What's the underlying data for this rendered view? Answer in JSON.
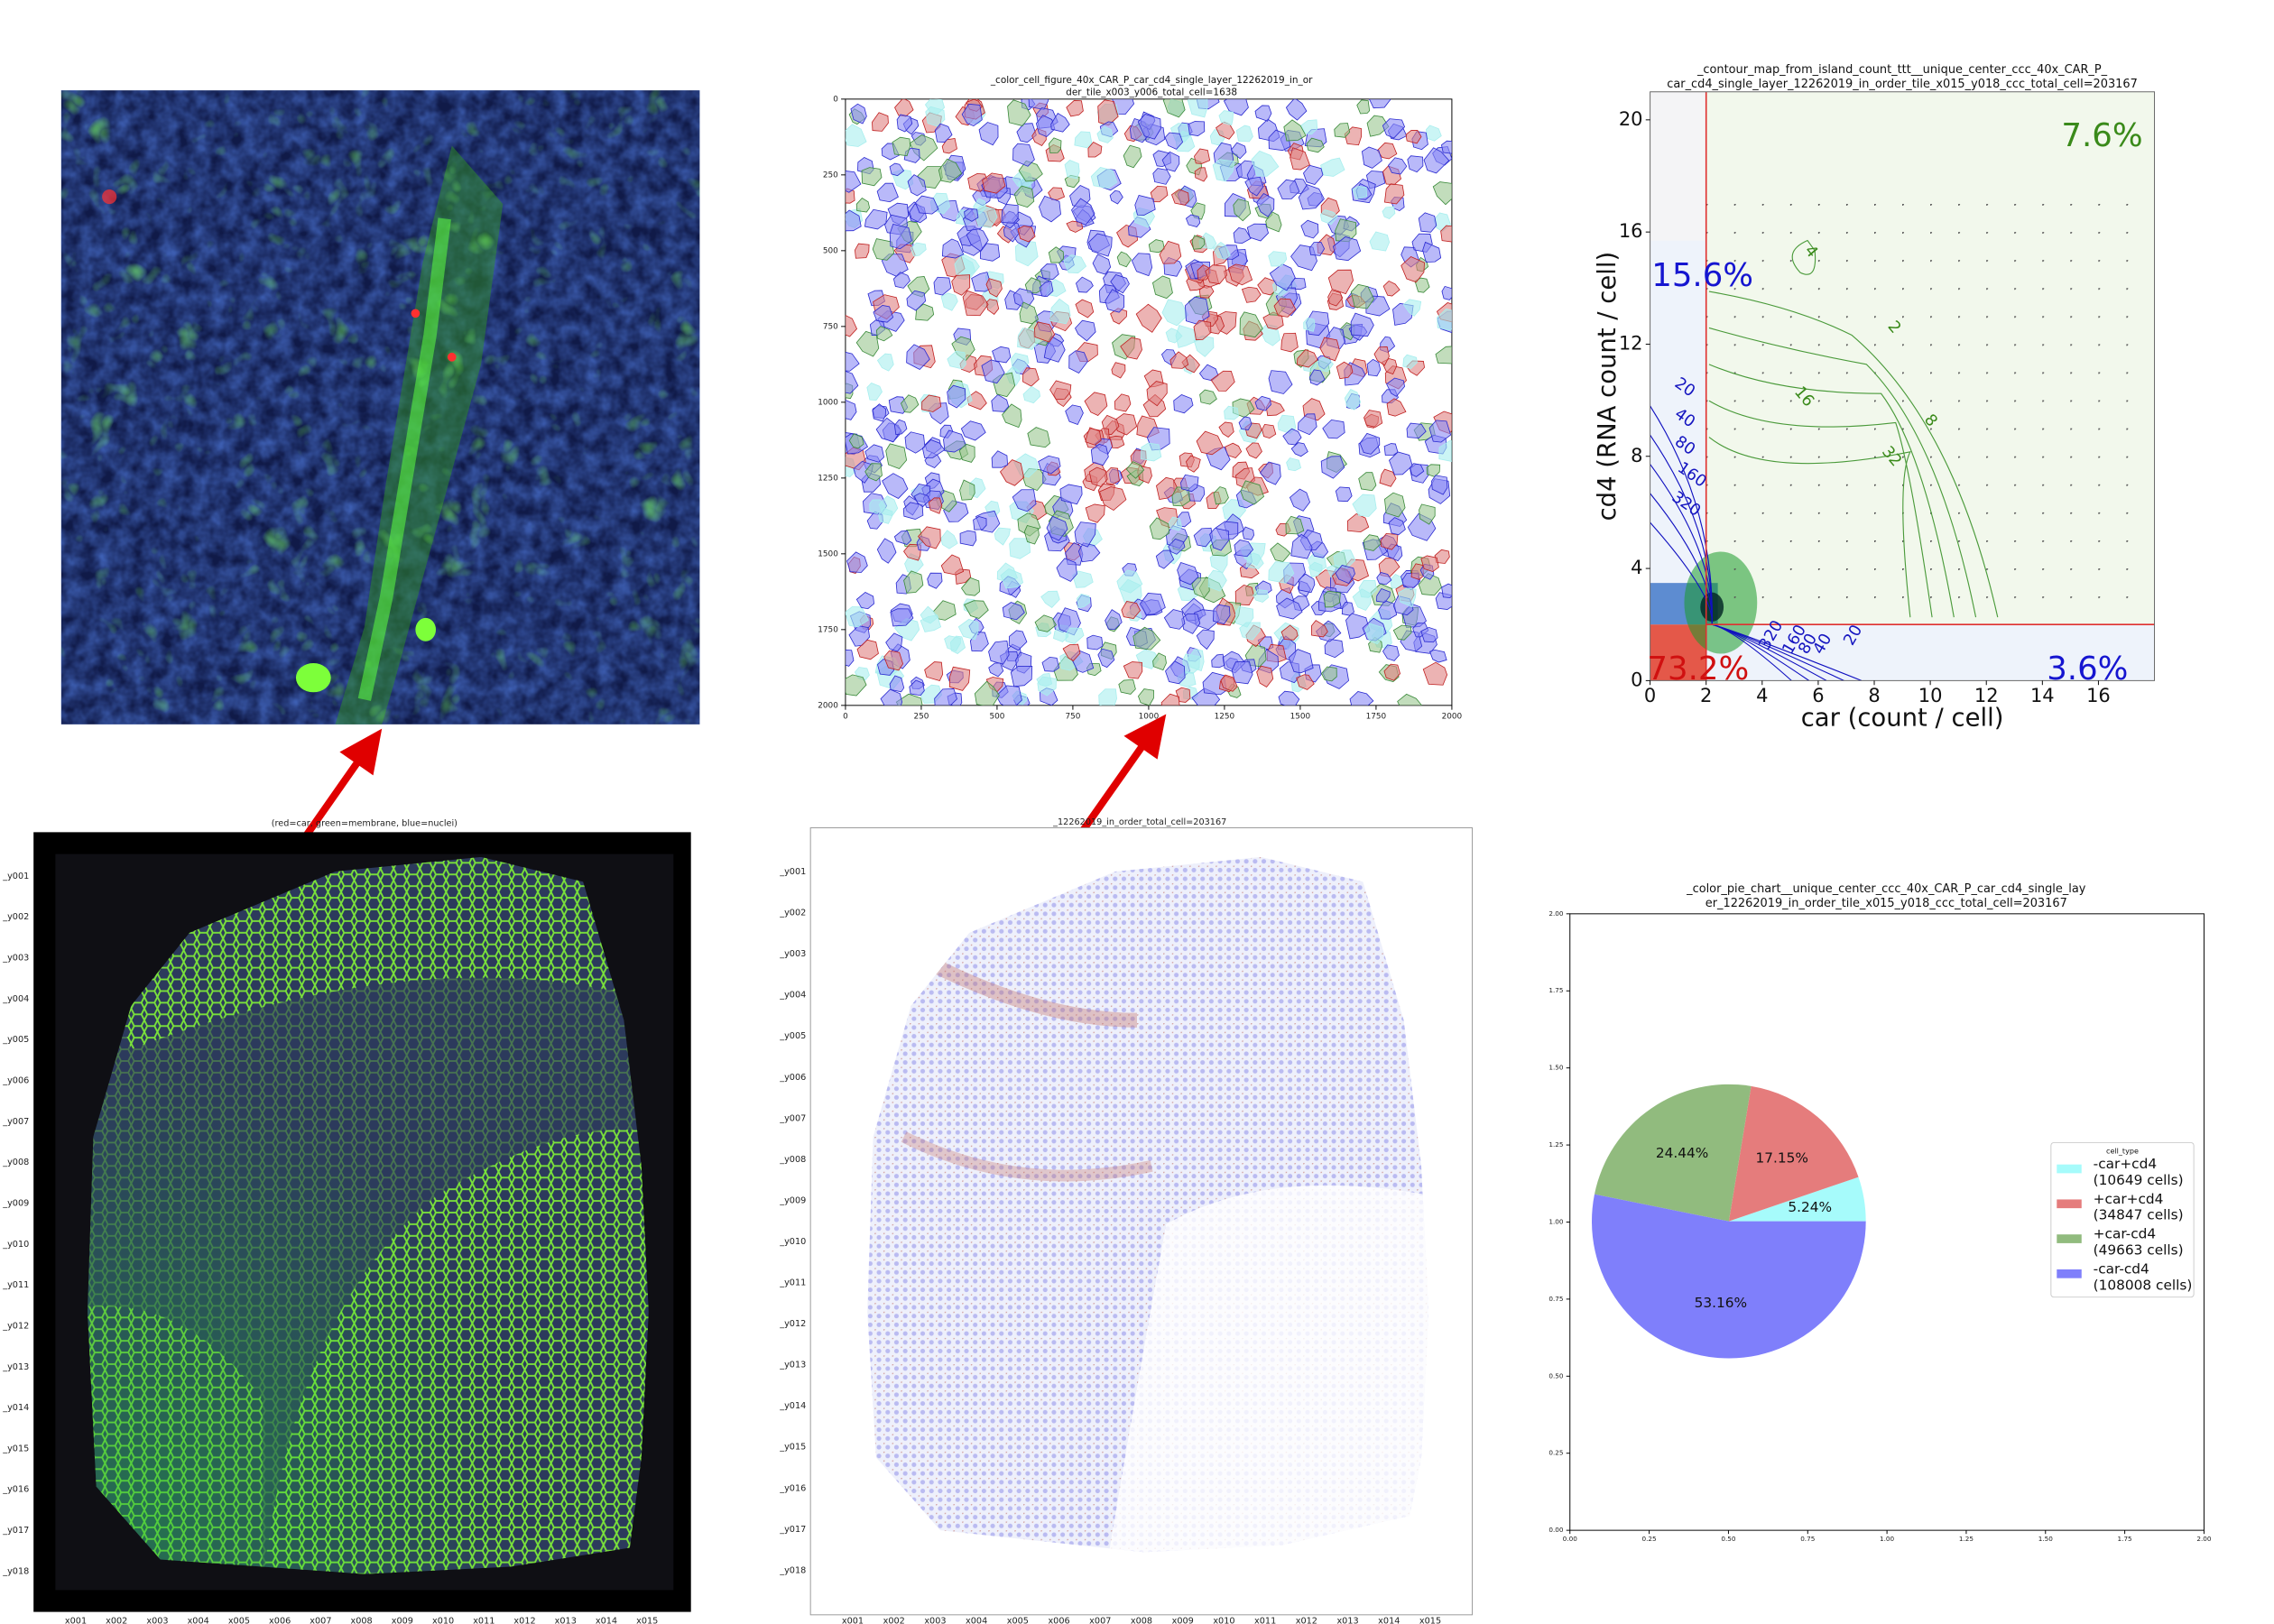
{
  "chart_data": [
    {
      "type": "image",
      "title": [
        "_color_cell_figure_40x_CAR_P_car_cd4_single_layer_12262019_in_or",
        "der_tile_x003_y006_total_cell=1638"
      ],
      "xlim": [
        0,
        2000
      ],
      "xticks": [
        0,
        250,
        500,
        750,
        1000,
        1250,
        1500,
        1750,
        2000
      ],
      "ylim": [
        2000,
        0
      ],
      "yticks": [
        0,
        250,
        500,
        750,
        1000,
        1250,
        1500,
        1750,
        2000
      ]
    },
    {
      "type": "contour",
      "title": [
        "_contour_map_from_island_count_ttt__unique_center_ccc_40x_CAR_P_",
        "car_cd4_single_layer_12262019_in_order_tile_x015_y018_ccc_total_cell=203167"
      ],
      "xlabel": "car (count / cell)",
      "ylabel": "cd4 (RNA count / cell)",
      "xlim": [
        0,
        18
      ],
      "xticks": [
        0,
        2,
        4,
        6,
        8,
        10,
        12,
        14,
        16
      ],
      "ylim": [
        0,
        21
      ],
      "yticks": [
        0,
        4,
        8,
        12,
        16,
        20
      ],
      "x_threshold": 2,
      "y_threshold": 2,
      "threshold_color": "#e03030",
      "values": [
        7.6,
        15.6,
        73.2,
        3.6
      ],
      "value_labels": [
        "7.6%",
        "15.6%",
        "73.2%",
        "3.6%"
      ],
      "value_colors": [
        "#3a8a1a",
        "#1515d0",
        "#d01010",
        "#1515d0"
      ],
      "blue_levels": [
        20,
        40,
        80,
        160,
        320
      ],
      "green_levels": [
        2,
        4,
        8,
        16,
        32
      ]
    },
    {
      "type": "pie",
      "title": [
        "_color_pie_chart__unique_center_ccc_40x_CAR_P_car_cd4_single_lay",
        "er_12262019_in_order_tile_x015_y018_ccc_total_cell=203167"
      ],
      "categories": [
        "-car+cd4",
        "+car+cd4",
        "+car-cd4",
        "-car-cd4"
      ],
      "legend_details": [
        "(10649 cells)",
        "(34847 cells)",
        "(49663 cells)",
        "(108008 cells)"
      ],
      "legend_title": "cell_type",
      "legend": "right",
      "values": [
        5.24,
        17.15,
        24.44,
        53.16
      ],
      "value_labels": [
        "5.24%",
        "17.15%",
        "24.44%",
        "53.16%"
      ],
      "colors": [
        "#a6fbfb",
        "#e57c7c",
        "#91bb7e",
        "#7f7ffb"
      ],
      "xlim": [
        0,
        2
      ],
      "xticks": [
        {
          "value": 0,
          "label": "0.00"
        },
        {
          "value": 0.25,
          "label": "0.25"
        },
        {
          "value": 0.5,
          "label": "0.50"
        },
        {
          "value": 0.75,
          "label": "0.75"
        },
        {
          "value": 1,
          "label": "1.00"
        },
        {
          "value": 1.25,
          "label": "1.25"
        },
        {
          "value": 1.5,
          "label": "1.50"
        },
        {
          "value": 1.75,
          "label": "1.75"
        },
        {
          "value": 2,
          "label": "2.00"
        }
      ],
      "ylim": [
        0,
        2
      ],
      "yticks": [
        {
          "value": 0,
          "label": "0.00"
        },
        {
          "value": 0.25,
          "label": "0.25"
        },
        {
          "value": 0.5,
          "label": "0.50"
        },
        {
          "value": 0.75,
          "label": "0.75"
        },
        {
          "value": 1,
          "label": "1.00"
        },
        {
          "value": 1.25,
          "label": "1.25"
        },
        {
          "value": 1.5,
          "label": "1.50"
        },
        {
          "value": 1.75,
          "label": "1.75"
        },
        {
          "value": 2,
          "label": "2.00"
        }
      ]
    }
  ],
  "tissue_views": [
    {
      "title": "(red=car, green=membrane, blue=nuclei)",
      "y_labels": [
        "_y001",
        "_y002",
        "_y003",
        "_y004",
        "_y005",
        "_y006",
        "_y007",
        "_y008",
        "_y009",
        "_y010",
        "_y011",
        "_y012",
        "_y013",
        "_y014",
        "_y015",
        "_y016",
        "_y017",
        "_y018"
      ],
      "x_labels": [
        "x001",
        "x002",
        "x003",
        "x004",
        "x005",
        "x006",
        "x007",
        "x008",
        "x009",
        "x010",
        "x011",
        "x012",
        "x013",
        "x014",
        "x015"
      ]
    },
    {
      "title": "_12262019_in_order_total_cell=203167",
      "y_labels": [
        "_y001",
        "_y002",
        "_y003",
        "_y004",
        "_y005",
        "_y006",
        "_y007",
        "_y008",
        "_y009",
        "_y010",
        "_y011",
        "_y012",
        "_y013",
        "_y014",
        "_y015",
        "_y016",
        "_y017",
        "_y018"
      ],
      "x_labels": [
        "x001",
        "x002",
        "x003",
        "x004",
        "x005",
        "x006",
        "x007",
        "x008",
        "x009",
        "x010",
        "x011",
        "x012",
        "x013",
        "x014",
        "x015"
      ]
    }
  ]
}
